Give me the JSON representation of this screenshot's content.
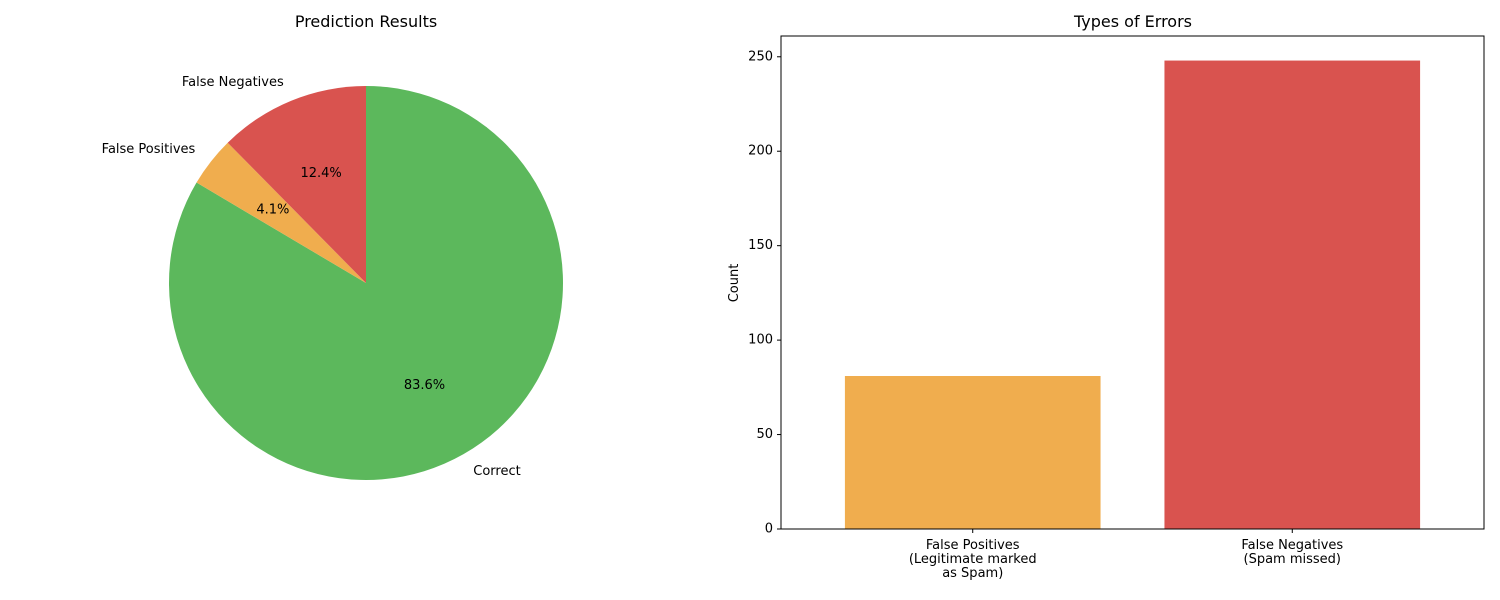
{
  "chart_data": [
    {
      "type": "pie",
      "title": "Prediction Results",
      "labels": [
        "Correct",
        "False Positives",
        "False Negatives"
      ],
      "values": [
        83.6,
        4.1,
        12.4
      ],
      "value_labels": [
        "83.6%",
        "4.1%",
        "12.4%"
      ],
      "colors": [
        "#5cb85c",
        "#f0ad4e",
        "#d9534f"
      ],
      "start_angle_deg": 90,
      "direction": "clockwise"
    },
    {
      "type": "bar",
      "title": "Types of Errors",
      "categories": [
        [
          "False Positives",
          "(Legitimate marked",
          "as Spam)"
        ],
        [
          "False Negatives",
          "(Spam missed)"
        ]
      ],
      "values": [
        81,
        248
      ],
      "colors": [
        "#f0ad4e",
        "#d9534f"
      ],
      "xlabel": "",
      "ylabel": "Count",
      "ylim": [
        0,
        261
      ],
      "yticks": [
        0,
        50,
        100,
        150,
        200,
        250
      ],
      "grid": false
    }
  ]
}
